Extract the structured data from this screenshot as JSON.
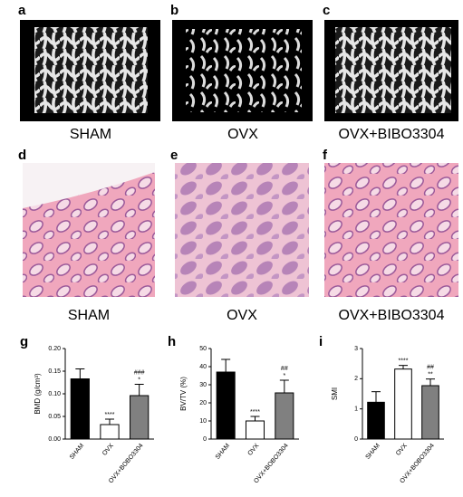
{
  "panel_labels": [
    "a",
    "b",
    "c",
    "d",
    "e",
    "f",
    "g",
    "h",
    "i"
  ],
  "image_captions": [
    "SHAM",
    "OVX",
    "OVX+BIBO3304",
    "SHAM",
    "OVX",
    "OVX+BIBO3304"
  ],
  "chart_data": [
    {
      "type": "bar",
      "ylabel": "BMD (g/cm³)",
      "categories": [
        "SHAM",
        "OVX",
        "OVX+BOBO3304"
      ],
      "values": [
        0.133,
        0.032,
        0.096
      ],
      "errors": [
        0.022,
        0.012,
        0.025
      ],
      "colors": [
        "#000000",
        "#ffffff",
        "#808080"
      ],
      "sig_vs_sham": [
        null,
        "****",
        "*"
      ],
      "sig_vs_ovx": [
        null,
        null,
        "###"
      ],
      "ylim": [
        0,
        0.2
      ],
      "yticks": [
        {
          "value": 0,
          "label": "0.00"
        },
        {
          "value": 0.05,
          "label": "0.05"
        },
        {
          "value": 0.1,
          "label": "0.10"
        },
        {
          "value": 0.15,
          "label": "0.15"
        },
        {
          "value": 0.2,
          "label": "0.20"
        }
      ]
    },
    {
      "type": "bar",
      "ylabel": "BV/TV (%)",
      "categories": [
        "SHAM",
        "OVX",
        "OVX+BOBO3304"
      ],
      "values": [
        37,
        10,
        25.5
      ],
      "errors": [
        7,
        2.5,
        7
      ],
      "colors": [
        "#000000",
        "#ffffff",
        "#808080"
      ],
      "sig_vs_sham": [
        null,
        "****",
        "*"
      ],
      "sig_vs_ovx": [
        null,
        null,
        "##"
      ],
      "ylim": [
        0,
        50
      ],
      "yticks": [
        0,
        10,
        20,
        30,
        40,
        50
      ]
    },
    {
      "type": "bar",
      "ylabel": "SMI",
      "categories": [
        "SHAM",
        "OVX",
        "OVX+BOBO3304"
      ],
      "values": [
        1.22,
        2.32,
        1.77
      ],
      "errors": [
        0.35,
        0.12,
        0.22
      ],
      "colors": [
        "#000000",
        "#ffffff",
        "#808080"
      ],
      "sig_vs_sham": [
        null,
        "****",
        "**"
      ],
      "sig_vs_ovx": [
        null,
        null,
        "##"
      ],
      "ylim": [
        0,
        3
      ],
      "yticks": [
        0,
        1,
        2,
        3
      ]
    }
  ]
}
